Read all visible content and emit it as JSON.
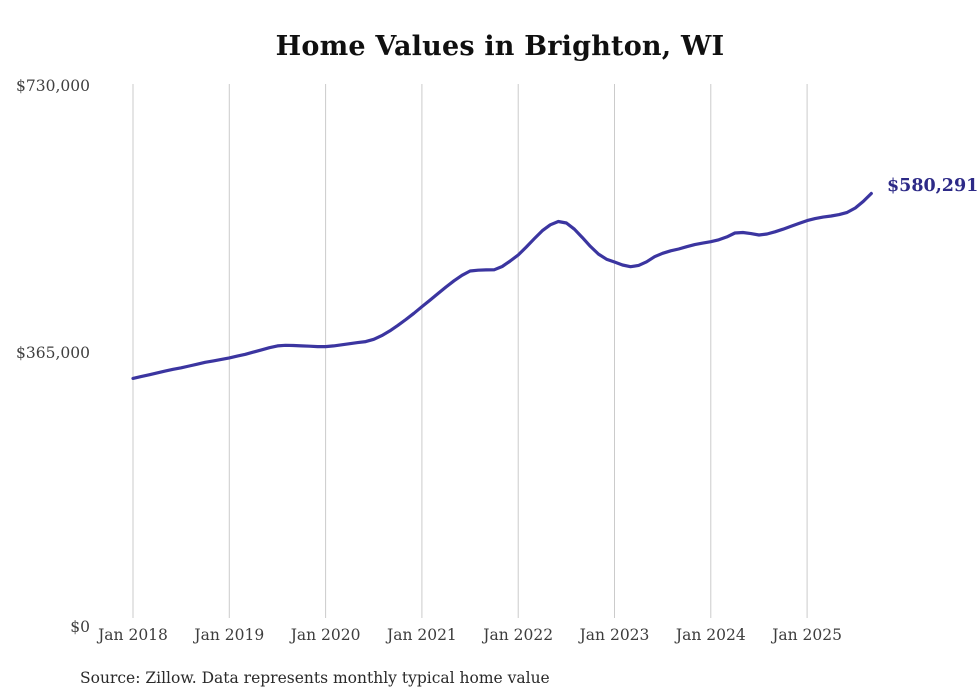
{
  "page": {
    "title": "Home Values in Brighton, WI",
    "source_note": "Source: Zillow. Data represents monthly typical home value"
  },
  "chart_data": {
    "type": "line",
    "title": "Home Values in Brighton, WI",
    "series_name": "Monthly typical home value",
    "unit": "USD",
    "frequency": "monthly",
    "x_start": "2018-01",
    "x_end": "2025-09",
    "values": [
      327500,
      330000,
      332500,
      335000,
      337500,
      340000,
      342000,
      344500,
      347000,
      349500,
      351500,
      353500,
      355500,
      358000,
      360500,
      363500,
      366500,
      369500,
      372000,
      372800,
      372500,
      372000,
      371500,
      371000,
      371000,
      372000,
      373500,
      375000,
      376500,
      377800,
      381000,
      386000,
      392500,
      400000,
      408000,
      416500,
      425600,
      434500,
      443500,
      452500,
      461000,
      468500,
      474400,
      475500,
      475800,
      476000,
      480500,
      488000,
      496300,
      507000,
      518500,
      529500,
      537500,
      542100,
      540000,
      531500,
      520000,
      508000,
      497500,
      490500,
      486700,
      482500,
      480200,
      482000,
      487000,
      493900,
      498500,
      502000,
      504500,
      507600,
      510500,
      512500,
      514400,
      517000,
      521000,
      526300,
      527000,
      525500,
      523600,
      525000,
      528000,
      531500,
      535500,
      539500,
      543200,
      546000,
      548000,
      549600,
      551500,
      554500,
      560500,
      569500,
      580291
    ],
    "x_tick_labels": [
      "Jan 2018",
      "Jan 2019",
      "Jan 2020",
      "Jan 2021",
      "Jan 2022",
      "Jan 2023",
      "Jan 2024",
      "Jan 2025"
    ],
    "y_ticks": [
      {
        "label": "$0",
        "value": 0
      },
      {
        "label": "$365,000",
        "value": 365000
      },
      {
        "label": "$730,000",
        "value": 730000
      }
    ],
    "ylim": [
      0,
      730000
    ],
    "grid": "vertical-only",
    "legend": "none",
    "end_label": "$580,291",
    "end_value": 580291,
    "line_color": "#3b35a0",
    "end_label_color": "#2d2a87",
    "grid_color": "#cbcbcb",
    "title_color": "#101010",
    "axis_label_color": "#404040"
  }
}
